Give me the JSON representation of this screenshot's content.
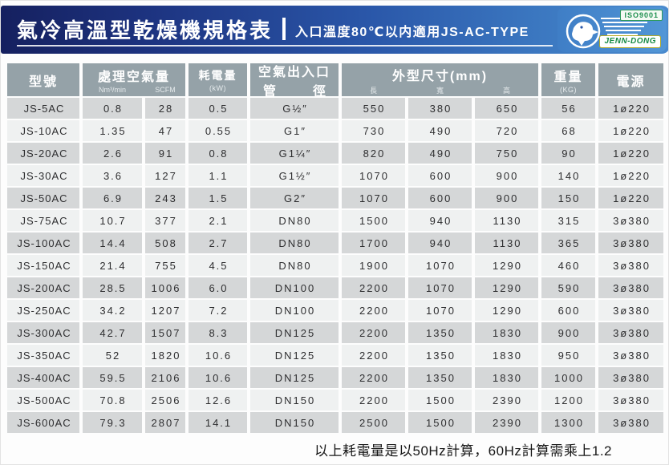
{
  "banner": {
    "title": "氣冷高溫型乾燥機規格表",
    "subtitle": "入口溫度80℃以内適用JS-AC-TYPE",
    "logo": {
      "iso": "ISO9001",
      "brand": "JENN-DONG"
    }
  },
  "table": {
    "headers": {
      "model": "型號",
      "air_capacity": "處理空氣量",
      "air_capacity_units": [
        "Nm³/min",
        "SCFM"
      ],
      "power": "耗電量",
      "power_unit": "(kW)",
      "pipe_line1": "空氣出入口",
      "pipe_line2_left": "管",
      "pipe_line2_right": "徑",
      "dimensions": "外型尺寸(mm)",
      "dimension_units": [
        "長",
        "寬",
        "高"
      ],
      "weight": "重量",
      "weight_unit": "(KG)",
      "power_supply": "電源"
    },
    "rows": [
      [
        "JS-5AC",
        "0.8",
        "28",
        "0.5",
        "G½″",
        "550",
        "380",
        "650",
        "56",
        "1ø220"
      ],
      [
        "JS-10AC",
        "1.35",
        "47",
        "0.55",
        "G1″",
        "730",
        "490",
        "720",
        "68",
        "1ø220"
      ],
      [
        "JS-20AC",
        "2.6",
        "91",
        "0.8",
        "G1¼″",
        "820",
        "490",
        "750",
        "90",
        "1ø220"
      ],
      [
        "JS-30AC",
        "3.6",
        "127",
        "1.1",
        "G1½″",
        "1070",
        "600",
        "900",
        "140",
        "1ø220"
      ],
      [
        "JS-50AC",
        "6.9",
        "243",
        "1.5",
        "G2″",
        "1070",
        "600",
        "900",
        "150",
        "1ø220"
      ],
      [
        "JS-75AC",
        "10.7",
        "377",
        "2.1",
        "DN80",
        "1500",
        "940",
        "1130",
        "315",
        "3ø380"
      ],
      [
        "JS-100AC",
        "14.4",
        "508",
        "2.7",
        "DN80",
        "1700",
        "940",
        "1130",
        "365",
        "3ø380"
      ],
      [
        "JS-150AC",
        "21.4",
        "755",
        "4.5",
        "DN80",
        "1900",
        "1070",
        "1290",
        "460",
        "3ø380"
      ],
      [
        "JS-200AC",
        "28.5",
        "1006",
        "6.0",
        "DN100",
        "2200",
        "1070",
        "1290",
        "590",
        "3ø380"
      ],
      [
        "JS-250AC",
        "34.2",
        "1207",
        "7.2",
        "DN100",
        "2200",
        "1070",
        "1290",
        "600",
        "3ø380"
      ],
      [
        "JS-300AC",
        "42.7",
        "1507",
        "8.3",
        "DN125",
        "2200",
        "1350",
        "1830",
        "900",
        "3ø380"
      ],
      [
        "JS-350AC",
        "52",
        "1820",
        "10.6",
        "DN125",
        "2200",
        "1350",
        "1830",
        "950",
        "3ø380"
      ],
      [
        "JS-400AC",
        "59.5",
        "2106",
        "10.6",
        "DN125",
        "2200",
        "1350",
        "1830",
        "1000",
        "3ø380"
      ],
      [
        "JS-500AC",
        "70.8",
        "2506",
        "12.6",
        "DN150",
        "2200",
        "1500",
        "2390",
        "1200",
        "3ø380"
      ],
      [
        "JS-600AC",
        "79.3",
        "2807",
        "14.1",
        "DN150",
        "2500",
        "1500",
        "2390",
        "1300",
        "3ø380"
      ]
    ]
  },
  "footer": {
    "note": "以上耗電量是以50Hz計算，60Hz計算需乘上1.2"
  },
  "colors": {
    "banner_dark": "#15205f",
    "banner_mid": "#2a57a9",
    "banner_light": "#4a8bce",
    "header_bg": "#95a2a8",
    "row_gray": "#d5d7d8",
    "row_light": "#eff1f1",
    "brand_green": "#168a44"
  }
}
